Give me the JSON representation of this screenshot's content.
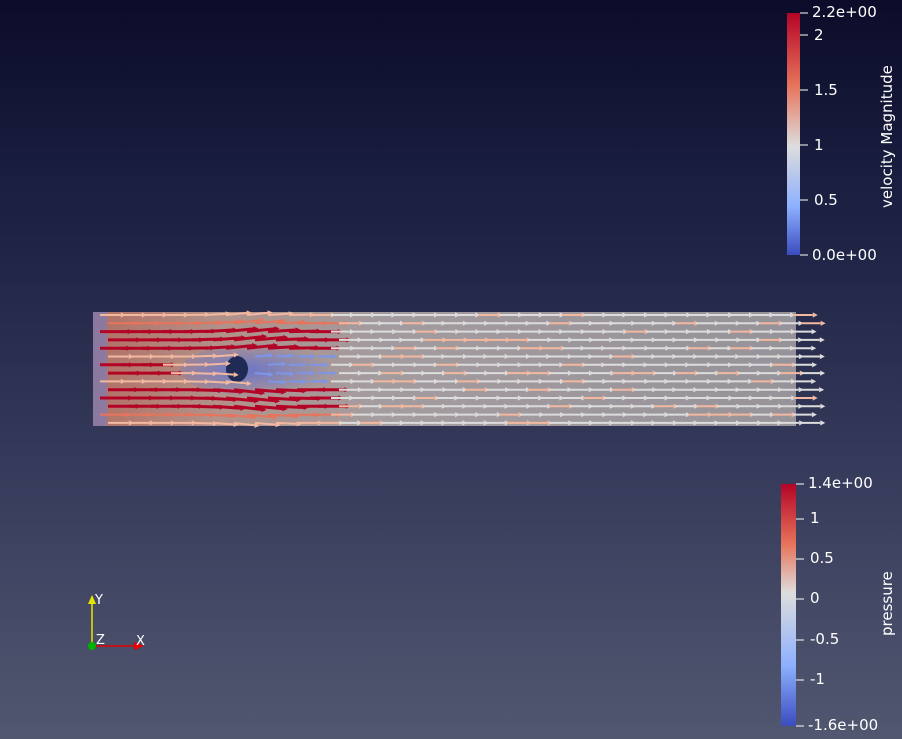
{
  "velocity_legend": {
    "title": "velocity Magnitude",
    "max_label": "2.2e+00",
    "min_label": "0.0e+00",
    "ticks": [
      "2",
      "1.5",
      "1",
      "0.5"
    ],
    "colors": [
      "#b40426",
      "#e7745b",
      "#dddddd",
      "#3b4cc0"
    ]
  },
  "pressure_legend": {
    "title": "pressure",
    "max_label": "1.4e+00",
    "min_label": "-1.6e+00",
    "ticks": [
      "1",
      "0.5",
      "0",
      "-0.5",
      "-1"
    ],
    "colors": [
      "#b40426",
      "#e7745b",
      "#dddddd",
      "#3b4cc0"
    ]
  },
  "orientation_axes": {
    "y_label": "Y",
    "z_label": "Z",
    "x_label": "X",
    "y_color": "#e6e600",
    "x_color": "#e60000",
    "z_color": "#00b300"
  },
  "scene": {
    "background_top": "#0c0c2a",
    "background_bottom": "#525770",
    "obstacle_color": "#1f2a55"
  }
}
